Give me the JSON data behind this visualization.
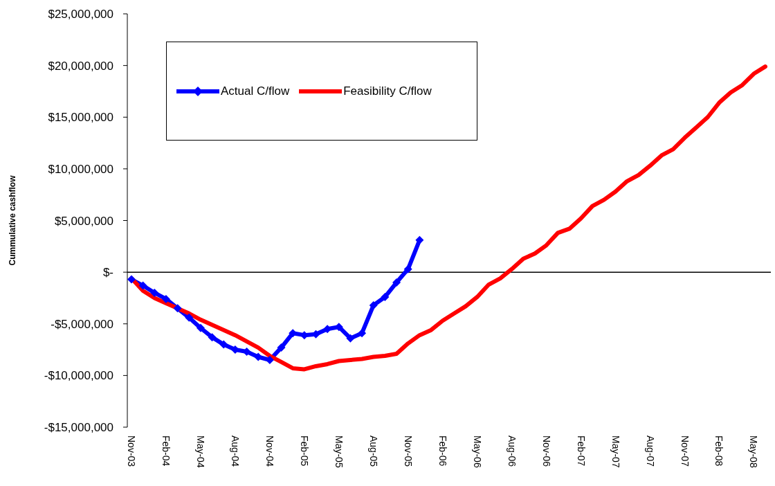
{
  "chart_data": {
    "type": "line",
    "ylabel": "Cummulative cashflow",
    "categories": [
      "Nov-03",
      null,
      null,
      "Feb-04",
      null,
      null,
      "May-04",
      null,
      null,
      "Aug-04",
      null,
      null,
      "Nov-04",
      null,
      null,
      "Feb-05",
      null,
      null,
      "May-05",
      null,
      null,
      "Aug-05",
      null,
      null,
      "Nov-05",
      null,
      null,
      "Feb-06",
      null,
      null,
      "May-06",
      null,
      null,
      "Aug-06",
      null,
      null,
      "Nov-06",
      null,
      null,
      "Feb-07",
      null,
      null,
      "May-07",
      null,
      null,
      "Aug-07",
      null,
      null,
      "Nov-07",
      null,
      null,
      "Feb-08",
      null,
      null,
      "May-08",
      null
    ],
    "series": [
      {
        "name": "Actual C/flow",
        "color": "#0000ff",
        "marker": "diamond",
        "values": [
          -700000,
          -1300000,
          -2000000,
          -2600000,
          -3500000,
          -4400000,
          -5400000,
          -6300000,
          -7000000,
          -7500000,
          -7700000,
          -8200000,
          -8500000,
          -7300000,
          -5900000,
          -6100000,
          -6000000,
          -5500000,
          -5300000,
          -6400000,
          -5900000,
          -3200000,
          -2400000,
          -1000000,
          300000,
          3100000,
          null,
          null,
          null,
          null,
          null,
          null,
          null,
          null,
          null,
          null,
          null,
          null,
          null,
          null,
          null,
          null,
          null,
          null,
          null,
          null,
          null,
          null,
          null,
          null,
          null,
          null,
          null,
          null,
          null,
          null
        ]
      },
      {
        "name": "Feasibility C/flow",
        "color": "#ff0000",
        "marker": "none",
        "values": [
          -600000,
          -1800000,
          -2500000,
          -3000000,
          -3500000,
          -4000000,
          -4600000,
          -5100000,
          -5600000,
          -6100000,
          -6700000,
          -7300000,
          -8100000,
          -8700000,
          -9300000,
          -9400000,
          -9100000,
          -8900000,
          -8600000,
          -8500000,
          -8400000,
          -8200000,
          -8100000,
          -7900000,
          -6900000,
          -6100000,
          -5600000,
          -4700000,
          -4000000,
          -3300000,
          -2400000,
          -1200000,
          -600000,
          300000,
          1300000,
          1800000,
          2600000,
          3800000,
          4200000,
          5200000,
          6400000,
          7000000,
          7800000,
          8800000,
          9400000,
          10300000,
          11300000,
          11900000,
          13000000,
          14000000,
          15000000,
          16400000,
          17400000,
          18100000,
          19200000,
          19900000
        ]
      }
    ],
    "ylim": [
      -15000000,
      25000000
    ],
    "yticks": [
      {
        "value": -15000000,
        "label": "-$15,000,000"
      },
      {
        "value": -10000000,
        "label": "-$10,000,000"
      },
      {
        "value": -5000000,
        "label": "-$5,000,000"
      },
      {
        "value": 0,
        "label": "$-"
      },
      {
        "value": 5000000,
        "label": "$5,000,000"
      },
      {
        "value": 10000000,
        "label": "$10,000,000"
      },
      {
        "value": 15000000,
        "label": "$15,000,000"
      },
      {
        "value": 20000000,
        "label": "$20,000,000"
      },
      {
        "value": 25000000,
        "label": "$25,000,000"
      }
    ],
    "ref_lines": [
      {
        "axis": "y",
        "value": 0,
        "color": "#000000"
      }
    ],
    "grid": false,
    "legend": "top left",
    "line_style": "solid"
  }
}
